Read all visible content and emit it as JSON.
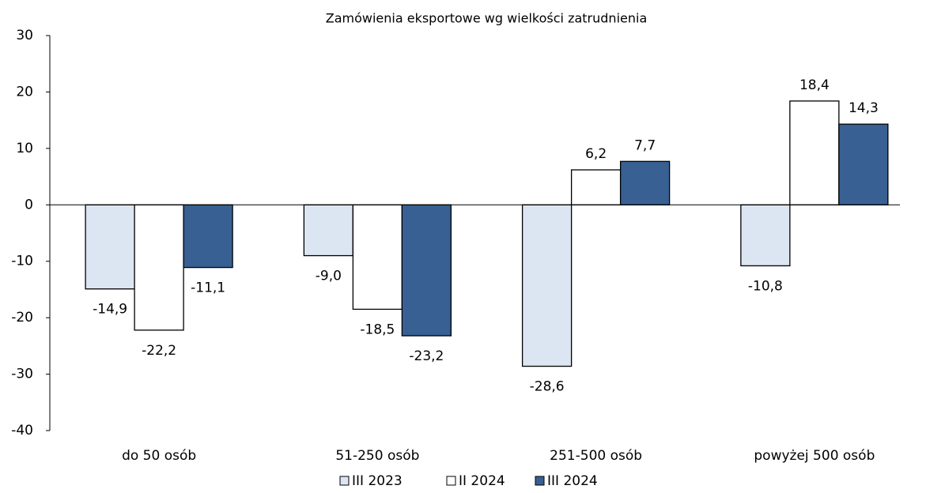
{
  "chart_data": {
    "type": "bar",
    "title": "Zamówienia eksportowe wg wielkości zatrudnienia",
    "categories": [
      "do 50 osób",
      "51-250 osób",
      "251-500 osób",
      "powyżej 500 osób"
    ],
    "series": [
      {
        "name": "III 2023",
        "color": "#dce6f2",
        "values": [
          -14.9,
          -9.0,
          -28.6,
          -10.8
        ],
        "value_labels": [
          "-14,9",
          "-9,0",
          "-28,6",
          "-10,8"
        ]
      },
      {
        "name": "II 2024",
        "color": "#ffffff",
        "values": [
          -22.2,
          -18.5,
          6.2,
          18.4
        ],
        "value_labels": [
          "-22,2",
          "-18,5",
          "6,2",
          "18,4"
        ]
      },
      {
        "name": "III 2024",
        "color": "#386092",
        "values": [
          -11.1,
          -23.2,
          7.7,
          14.3
        ],
        "value_labels": [
          "-11,1",
          "-23,2",
          "7,7",
          "14,3"
        ]
      }
    ],
    "ylim": [
      -40,
      30
    ],
    "yticks": [
      -40,
      -30,
      -20,
      -10,
      0,
      10,
      20,
      30
    ],
    "grid": false
  }
}
